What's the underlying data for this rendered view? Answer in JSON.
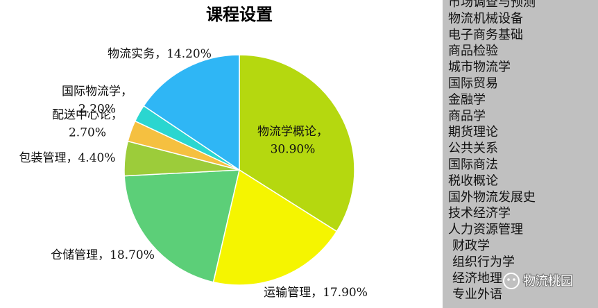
{
  "chart_data": {
    "type": "pie",
    "title": "课程设置",
    "categories": [
      "物流学概论",
      "运输管理",
      "仓储管理",
      "包装管理",
      "配送中心论",
      "国际物流学",
      "物流实务"
    ],
    "values": [
      30.9,
      17.9,
      18.7,
      4.4,
      2.7,
      2.2,
      14.2
    ],
    "value_labels": [
      "30.90%",
      "17.90%",
      "18.70%",
      "4.40%",
      "2.70%",
      "2.20%",
      "14.20%"
    ],
    "label_separator": "，",
    "colors": [
      "#b5d80f",
      "#f5f500",
      "#5ccf78",
      "#9ccc3a",
      "#f5c040",
      "#2ad6d0",
      "#2fb6f5"
    ]
  },
  "sidebar": {
    "items": [
      "市场调查与预测",
      "物流机械设备",
      "电子商务基础",
      "商品检验",
      "城市物流学",
      "国际贸易",
      "金融学",
      "商品学",
      "期货理论",
      "公共关系",
      "国际商法",
      "税收概论",
      "国外物流发展史",
      "技术经济学",
      "人力资源管理",
      "财政学",
      "组织行为学",
      "经济地理",
      "专业外语"
    ],
    "watermark": "物流桃园"
  }
}
